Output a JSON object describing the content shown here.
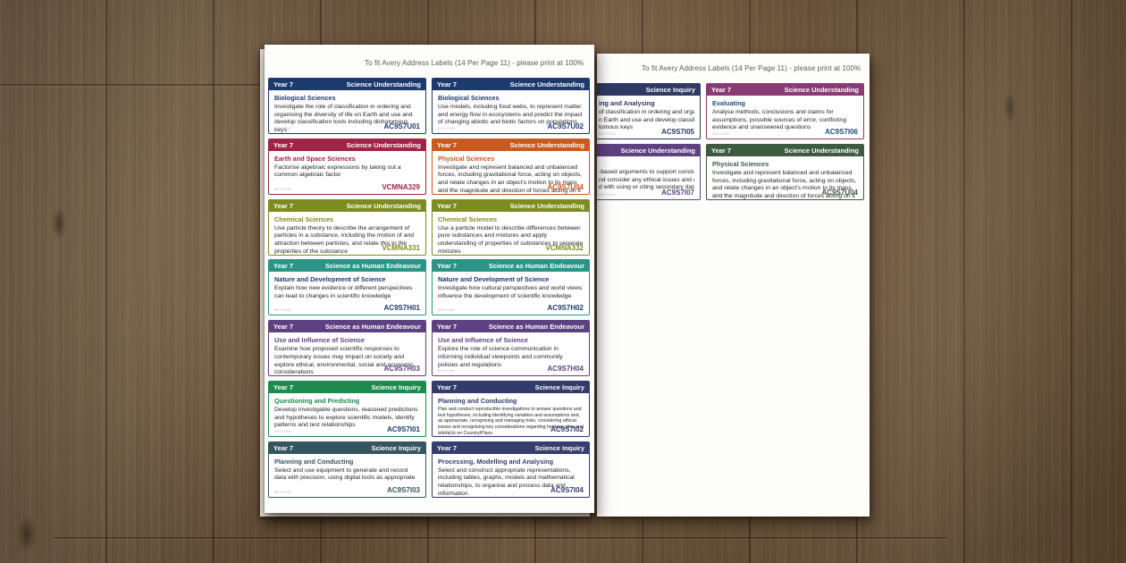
{
  "page": {
    "header_note": "To fit Avery Address Labels (14 Per Page 11) - please print at 100%",
    "watermark": "BEYOND"
  },
  "colors": {
    "navy": "#1d3a6d",
    "crimson": "#a02445",
    "orange": "#c85a20",
    "olive": "#7e8b20",
    "teal": "#2b9486",
    "purple": "#5e4180",
    "green": "#1f8a4d",
    "inquiry_navy": "#323c6b",
    "slate": "#375560",
    "indigo": "#353e6d",
    "sheet2_navy": "#2e3a64",
    "magenta": "#8a3b75",
    "dark_green": "#3e5a41",
    "blue_title": "#1f4e79"
  },
  "sheet1": {
    "labels": [
      {
        "year": "Year 7",
        "strand": "Science Understanding",
        "title": "Biological Sciences",
        "body": "Investigate the role of classification in ordering and organising the diversity of life on Earth and use and develop classification tools including dichotomous keys",
        "code": "AC9S7U01",
        "color": "#1d3a6d",
        "title_color": "#1d3a6d",
        "code_color": "#1d3a6d"
      },
      {
        "year": "Year 7",
        "strand": "Science Understanding",
        "title": "Biological Sciences",
        "body": "Use models, including food webs, to represent matter and energy flow in ecosystems and predict the impact of changing abiotic and biotic factors on populations",
        "code": "AC9S7U02",
        "color": "#1d3a6d",
        "title_color": "#1d3a6d",
        "code_color": "#1d3a6d"
      },
      {
        "year": "Year 7",
        "strand": "Science Understanding",
        "title": "Earth and Space Sciences",
        "body": "Factorise algebraic expressions by taking out a common algebraic factor",
        "code": "VCMNA329",
        "color": "#a02445",
        "title_color": "#a02445",
        "code_color": "#a02445"
      },
      {
        "year": "Year 7",
        "strand": "Science Understanding",
        "title": "Physical Sciences",
        "body": "Investigate and represent balanced and unbalanced forces, including gravitational force, acting on objects, and relate changes in an object's motion to its mass and the magnitude and direction of forces acting on it",
        "code": "AC9S7U04",
        "color": "#c85a20",
        "title_color": "#c85a20",
        "code_color": "#c85a20"
      },
      {
        "year": "Year 7",
        "strand": "Science Understanding",
        "title": "Chemical Sciences",
        "body": "Use particle theory to describe the arrangement of particles in a substance, including the motion of and attraction between particles, and relate this to the properties of the substance",
        "code": "VCMNA331",
        "color": "#7e8b20",
        "title_color": "#7e8b20",
        "code_color": "#7e8b20"
      },
      {
        "year": "Year 7",
        "strand": "Science Understanding",
        "title": "Chemical Sciences",
        "body": "Use a particle model to describe differences between pure substances and mixtures and apply understanding of properties of substances to separate mixtures",
        "code": "VCMNA332",
        "color": "#7e8b20",
        "title_color": "#7e8b20",
        "code_color": "#7e8b20"
      },
      {
        "year": "Year 7",
        "strand": "Science as Human Endeavour",
        "title": "Nature and Development of Science",
        "body": "Explain how new evidence or different perspectives can lead to changes in scientific knowledge",
        "code": "AC9S7H01",
        "color": "#2b9486",
        "title_color": "#1d3a6d",
        "code_color": "#1d3a6d"
      },
      {
        "year": "Year 7",
        "strand": "Science as Human Endeavour",
        "title": "Nature and Development of Science",
        "body": "Investigate how cultural perspectives and world views influence the development of scientific knowledge",
        "code": "AC9S7H02",
        "color": "#2b9486",
        "title_color": "#1d3a6d",
        "code_color": "#1d3a6d"
      },
      {
        "year": "Year 7",
        "strand": "Science as Human Endeavour",
        "title": "Use and Influence of Science",
        "body": "Examine how proposed scientific responses to contemporary issues may impact on society and explore ethical, environmental, social and economic considerations",
        "code": "AC9S7H03",
        "color": "#5e4180",
        "title_color": "#5e4180",
        "code_color": "#5e4180"
      },
      {
        "year": "Year 7",
        "strand": "Science as Human Endeavour",
        "title": "Use and Influence of Science",
        "body": "Explore the role of science communication in informing individual viewpoints and community policies and regulations",
        "code": "AC9S7H04",
        "color": "#5e4180",
        "title_color": "#5e4180",
        "code_color": "#5e4180"
      },
      {
        "year": "Year 7",
        "strand": "Science Inquiry",
        "title": "Questioning and Predicting",
        "body": "Develop investigable questions, reasoned predictions and hypotheses to explore scientific models, identify patterns and test relationships",
        "code": "AC9S7I01",
        "color": "#1f8a4d",
        "title_color": "#1f8a4d",
        "code_color": "#1d3a6d"
      },
      {
        "year": "Year 7",
        "strand": "Science Inquiry",
        "title": "Planning and Conducting",
        "body": "Plan and conduct reproducible investigations to answer questions and test hypotheses, including identifying variables and assumptions and, as appropriate, recognising and managing risks, considering ethical issues and recognising key considerations regarding heritage sites and artefacts on Country/Place",
        "code": "AC9S7I02",
        "color": "#323c6b",
        "title_color": "#323c6b",
        "code_color": "#323c6b"
      },
      {
        "year": "Year 7",
        "strand": "Science Inquiry",
        "title": "Planning and Conducting",
        "body": "Select and use equipment to generate and record data with precision, using digital tools as appropriate",
        "code": "AC9S7I03",
        "color": "#375560",
        "title_color": "#375560",
        "code_color": "#375560"
      },
      {
        "year": "Year 7",
        "strand": "Science Inquiry",
        "title": "Processing, Modelling and Analysing",
        "body": "Select and construct appropriate representations, including tables, graphs, models and mathematical relationships, to organise and process data and information",
        "code": "AC9S7I04",
        "color": "#353e6d",
        "title_color": "#353e6d",
        "code_color": "#353e6d"
      }
    ]
  },
  "sheet2": {
    "partial_labels": [
      {
        "strand": "Science Inquiry",
        "title_fragment": "ing and Analysing",
        "line1": "of classification in ordering and organising",
        "line2": "n Earth and use and develop classification",
        "line3": "tomous keys",
        "code": "AC9S7I05",
        "color": "#2e3a64",
        "title_color": "#2e3a64",
        "code_color": "#2e3a64"
      },
      {
        "strand": "Science Understanding",
        "title_fragment": "",
        "line1": "-based arguments to support conclusions",
        "line2": "nd consider any ethical issues and cultural",
        "line3": "d with using or citing secondary data or",
        "code": "AC9S7I07",
        "color": "#5e4180",
        "title_color": "#5e4180",
        "code_color": "#5e4180"
      }
    ],
    "labels": [
      {
        "year": "Year 7",
        "strand": "Science Understanding",
        "title": "Evaluating",
        "body": "Analyse methods, conclusions and claims for assumptions, possible sources of error, conflicting evidence and unanswered questions",
        "code": "AC9S7I06",
        "color": "#8a3b75",
        "title_color": "#1f4e79",
        "code_color": "#1f4e79"
      },
      {
        "year": "Year 7",
        "strand": "Science Understanding",
        "title": "Physical Sciences",
        "body": "Investigate and represent balanced and unbalanced forces, including gravitational force, acting on objects, and relate changes in an object's motion to its mass and the magnitude and direction of forces acting on it",
        "code": "AC9S7U04",
        "color": "#3e5a41",
        "title_color": "#3e5a41",
        "code_color": "#3e5a41"
      }
    ]
  }
}
